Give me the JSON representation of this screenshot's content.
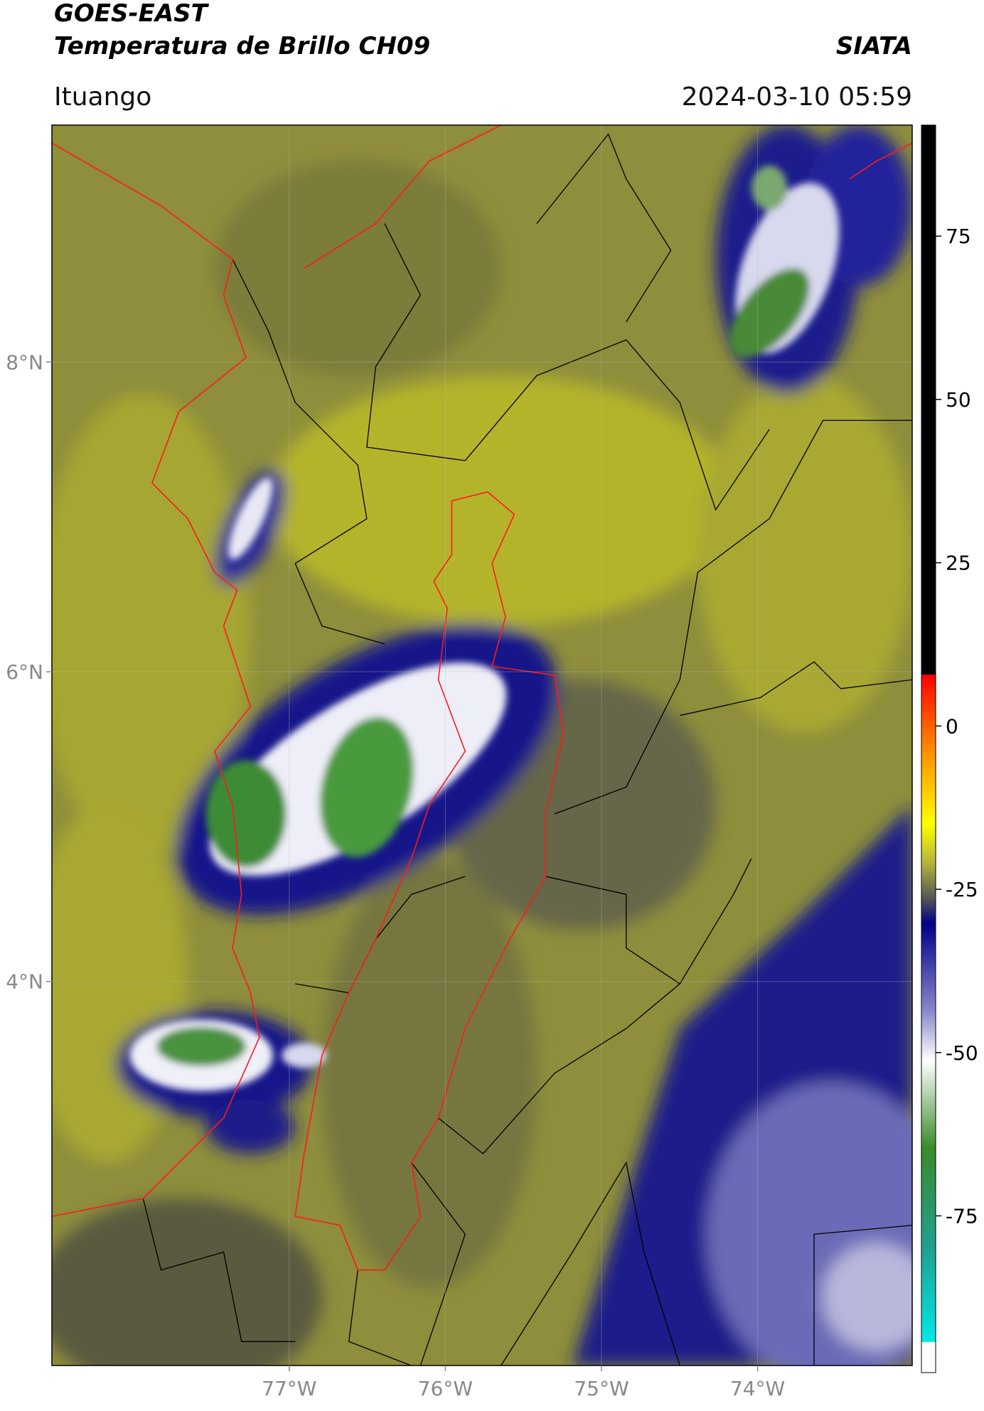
{
  "title": [
    "GOES-EAST",
    "Temperatura de Brillo CH09"
  ],
  "source": "SIATA",
  "region": "Ituango",
  "datetime": "2024-03-10 05:59",
  "map": {
    "lat_range": [
      1.52,
      9.53
    ],
    "lon_range": [
      -78.52,
      -73.01
    ],
    "lat_ticks": [
      {
        "value": 8,
        "label": "8°N"
      },
      {
        "value": 6,
        "label": "6°N"
      },
      {
        "value": 4,
        "label": "4°N"
      }
    ],
    "lon_ticks": [
      {
        "value": -77,
        "label": "77°W"
      },
      {
        "value": -76,
        "label": "76°W"
      },
      {
        "value": -75,
        "label": "75°W"
      },
      {
        "value": -74,
        "label": "74°W"
      }
    ]
  },
  "colorbar": {
    "range": [
      -99,
      92
    ],
    "ticks": [
      75,
      50,
      25,
      0,
      -25,
      -50,
      -75
    ]
  }
}
